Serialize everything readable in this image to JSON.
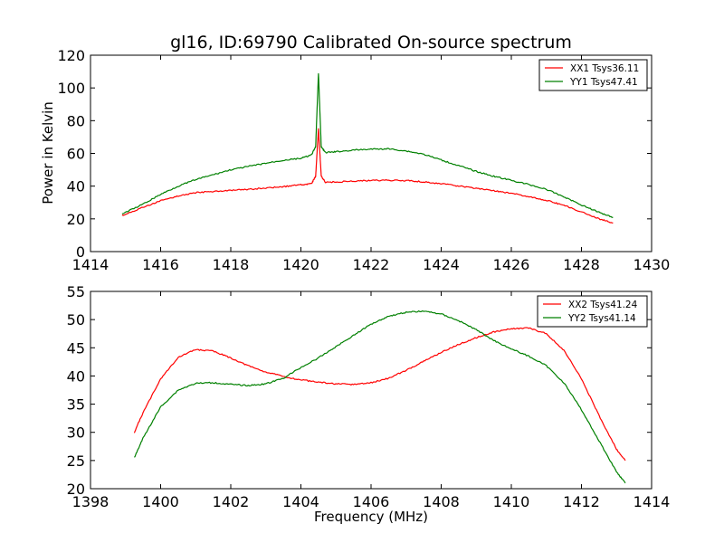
{
  "figure_title": "gl16, ID:69790 Calibrated On-source spectrum",
  "colors": {
    "xx": "#ff0000",
    "yy": "#008000"
  },
  "chart_data": [
    {
      "type": "line",
      "title": "gl16, ID:69790 Calibrated On-source spectrum",
      "xlabel": "",
      "ylabel": "Power in Kelvin",
      "xlim": [
        1414,
        1430
      ],
      "ylim": [
        0,
        120
      ],
      "xticks": [
        "1414",
        "1416",
        "1418",
        "1420",
        "1422",
        "1424",
        "1426",
        "1428",
        "1430"
      ],
      "yticks": [
        "0",
        "20",
        "40",
        "60",
        "80",
        "100",
        "120"
      ],
      "legend_position": "top-right",
      "series": [
        {
          "name": "XX1 Tsys36.11",
          "color": "#ff0000",
          "x": [
            1414.9,
            1415.5,
            1416,
            1416.5,
            1417,
            1417.5,
            1418,
            1418.5,
            1419,
            1419.5,
            1420,
            1420.3,
            1420.42,
            1420.5,
            1420.58,
            1420.7,
            1421,
            1421.5,
            1422,
            1422.5,
            1423,
            1423.5,
            1424,
            1424.5,
            1425,
            1425.5,
            1426,
            1426.5,
            1427,
            1427.5,
            1428,
            1428.5,
            1428.9
          ],
          "y": [
            22,
            27,
            31,
            34,
            36,
            36.8,
            37.3,
            38,
            38.8,
            39.7,
            40.8,
            41.5,
            46,
            75,
            46,
            42.3,
            42.6,
            43,
            43.5,
            43.6,
            43.4,
            42.6,
            41.5,
            40.1,
            38.7,
            37.2,
            35.6,
            33.6,
            31.3,
            28.3,
            24.3,
            20,
            17.5
          ]
        },
        {
          "name": "YY1 Tsys47.41",
          "color": "#008000",
          "x": [
            1414.9,
            1415.5,
            1416,
            1416.5,
            1417,
            1417.5,
            1418,
            1418.5,
            1419,
            1419.5,
            1420,
            1420.3,
            1420.42,
            1420.5,
            1420.58,
            1420.7,
            1421,
            1421.5,
            1422,
            1422.5,
            1423,
            1423.5,
            1424,
            1424.5,
            1425,
            1425.5,
            1426,
            1426.5,
            1427,
            1427.5,
            1428,
            1428.5,
            1428.9
          ],
          "y": [
            23,
            29,
            35,
            40,
            44,
            47,
            50,
            52,
            54,
            55.8,
            57,
            59,
            64,
            109,
            64,
            60.5,
            61,
            62,
            62.6,
            62.8,
            61.5,
            59.5,
            56,
            52.5,
            49,
            46,
            43.5,
            41,
            38,
            33.5,
            28.5,
            24,
            21
          ]
        }
      ]
    },
    {
      "type": "line",
      "title": "",
      "xlabel": "Frequency (MHz)",
      "ylabel": "",
      "xlim": [
        1398,
        1414
      ],
      "ylim": [
        20,
        55
      ],
      "xticks": [
        "1398",
        "1400",
        "1402",
        "1404",
        "1406",
        "1408",
        "1410",
        "1412",
        "1414"
      ],
      "yticks": [
        "20",
        "25",
        "30",
        "35",
        "40",
        "45",
        "50",
        "55"
      ],
      "legend_position": "top-right",
      "series": [
        {
          "name": "XX2 Tsys41.24",
          "color": "#ff0000",
          "x": [
            1399.25,
            1399.5,
            1400,
            1400.5,
            1401,
            1401.5,
            1402,
            1402.5,
            1403,
            1403.5,
            1404,
            1404.5,
            1405,
            1405.5,
            1406,
            1406.5,
            1407,
            1407.5,
            1408,
            1408.5,
            1409,
            1409.5,
            1410,
            1410.5,
            1411,
            1411.5,
            1412,
            1412.5,
            1413,
            1413.25
          ],
          "y": [
            30,
            33.5,
            39.5,
            43.3,
            44.7,
            44.4,
            43.2,
            41.8,
            40.7,
            39.9,
            39.3,
            38.9,
            38.6,
            38.5,
            38.8,
            39.6,
            41,
            42.6,
            44.2,
            45.6,
            46.8,
            47.8,
            48.4,
            48.5,
            47.5,
            44.5,
            39.5,
            33,
            27,
            25
          ]
        },
        {
          "name": "YY2 Tsys41.14",
          "color": "#008000",
          "x": [
            1399.25,
            1399.5,
            1400,
            1400.5,
            1401,
            1401.5,
            1402,
            1402.5,
            1403,
            1403.5,
            1404,
            1404.5,
            1405,
            1405.5,
            1406,
            1406.5,
            1407,
            1407.5,
            1408,
            1408.5,
            1409,
            1409.5,
            1410,
            1410.5,
            1411,
            1411.5,
            1412,
            1412.5,
            1413,
            1413.25
          ],
          "y": [
            25.5,
            29,
            34.5,
            37.5,
            38.7,
            38.8,
            38.5,
            38.3,
            38.6,
            39.6,
            41.5,
            43.2,
            45.2,
            47.2,
            49.2,
            50.6,
            51.3,
            51.5,
            51,
            49.8,
            48.2,
            46.3,
            44.8,
            43.5,
            41.8,
            38.8,
            34,
            28.5,
            23,
            21
          ]
        }
      ]
    }
  ]
}
